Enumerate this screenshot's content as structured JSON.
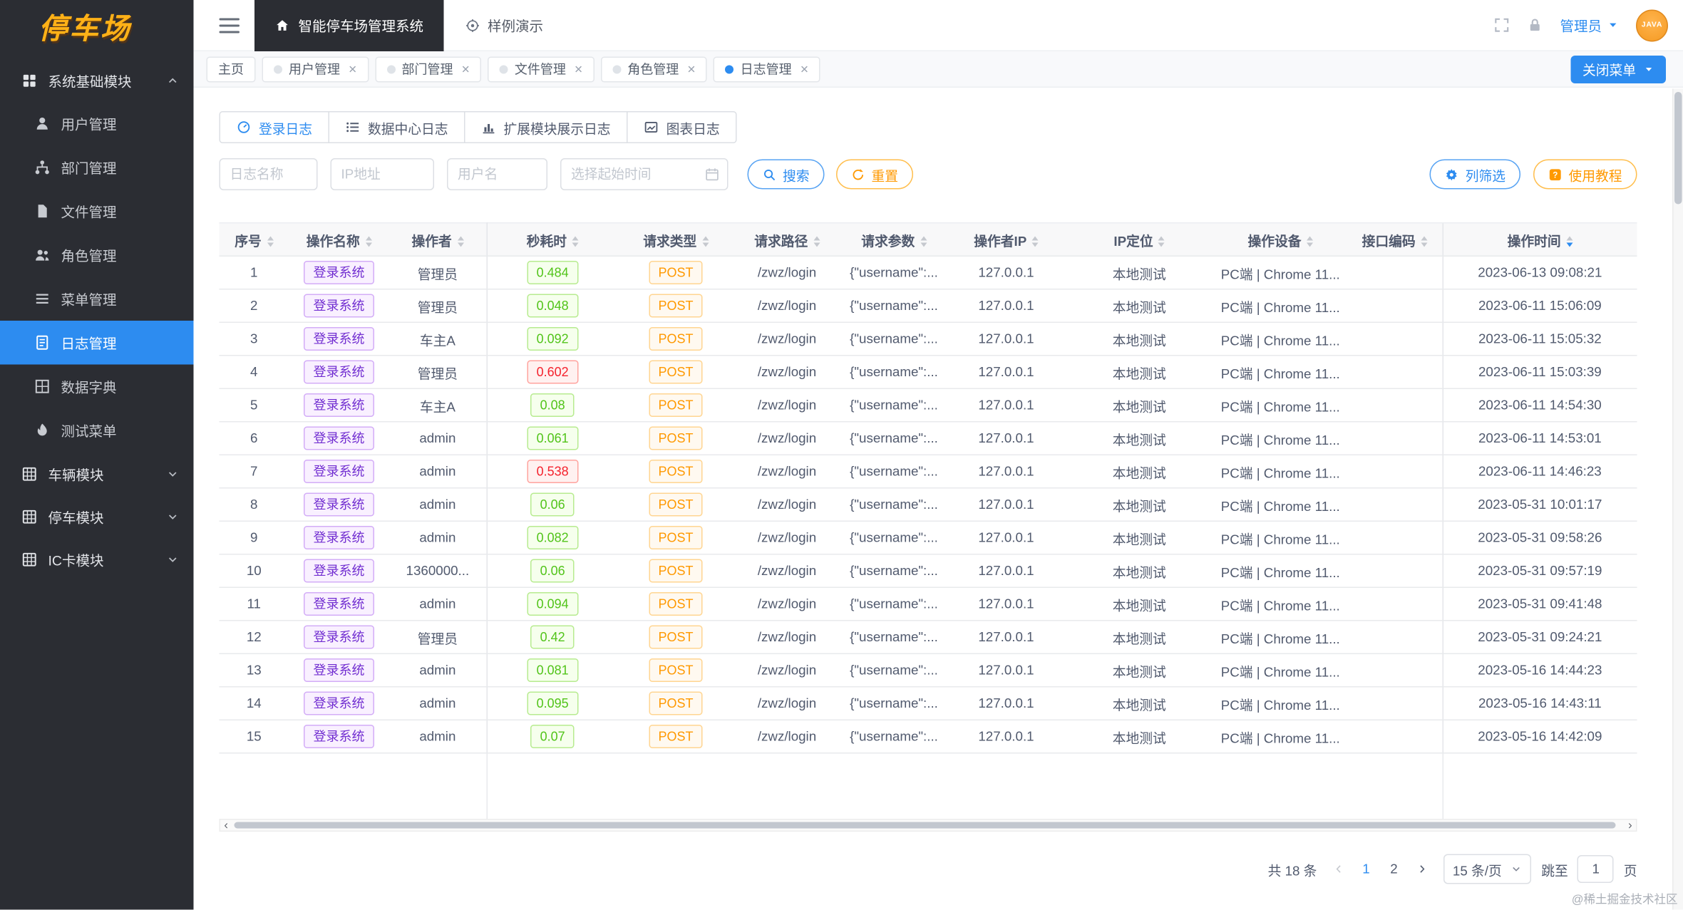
{
  "colors": {
    "primary": "#2d8cf0",
    "warning": "#ff9900",
    "sidebar_bg": "#2b2d33"
  },
  "logo": {
    "text": "停车场"
  },
  "topbar": {
    "system_title": "智能停车场管理系统",
    "demo_label": "样例演示",
    "user_label": "管理员",
    "avatar_text": "JAVA"
  },
  "tag_nav": {
    "close_menu_label": "关闭菜单",
    "tabs": [
      {
        "label": "主页",
        "dot": false,
        "closable": false,
        "active": false
      },
      {
        "label": "用户管理",
        "dot": true,
        "closable": true,
        "active": false
      },
      {
        "label": "部门管理",
        "dot": true,
        "closable": true,
        "active": false
      },
      {
        "label": "文件管理",
        "dot": true,
        "closable": true,
        "active": false
      },
      {
        "label": "角色管理",
        "dot": true,
        "closable": true,
        "active": false
      },
      {
        "label": "日志管理",
        "dot": true,
        "closable": true,
        "active": true
      }
    ]
  },
  "sidebar": {
    "items": [
      {
        "label": "系统基础模块",
        "icon": "modules-icon",
        "type": "section",
        "expanded": true,
        "active": false
      },
      {
        "label": "用户管理",
        "icon": "user-icon",
        "type": "item",
        "active": false
      },
      {
        "label": "部门管理",
        "icon": "department-icon",
        "type": "item",
        "active": false
      },
      {
        "label": "文件管理",
        "icon": "file-icon",
        "type": "item",
        "active": false
      },
      {
        "label": "角色管理",
        "icon": "role-icon",
        "type": "item",
        "active": false
      },
      {
        "label": "菜单管理",
        "icon": "menu-icon",
        "type": "item",
        "active": false
      },
      {
        "label": "日志管理",
        "icon": "log-icon",
        "type": "item",
        "active": true
      },
      {
        "label": "数据字典",
        "icon": "dict-icon",
        "type": "item",
        "active": false
      },
      {
        "label": "测试菜单",
        "icon": "test-icon",
        "type": "item",
        "active": false
      },
      {
        "label": "车辆模块",
        "icon": "vehicle-module-icon",
        "type": "section",
        "expanded": false,
        "active": false
      },
      {
        "label": "停车模块",
        "icon": "parking-module-icon",
        "type": "section",
        "expanded": false,
        "active": false
      },
      {
        "label": "IC卡模块",
        "icon": "ic-card-module-icon",
        "type": "section",
        "expanded": false,
        "active": false
      }
    ]
  },
  "log_tabs": [
    {
      "label": "登录日志",
      "icon": "login-log-icon",
      "active": true
    },
    {
      "label": "数据中心日志",
      "icon": "data-center-log-icon",
      "active": false
    },
    {
      "label": "扩展模块展示日志",
      "icon": "extension-log-icon",
      "active": false
    },
    {
      "label": "图表日志",
      "icon": "chart-log-icon",
      "active": false
    }
  ],
  "filters": {
    "log_name_placeholder": "日志名称",
    "ip_placeholder": "IP地址",
    "username_placeholder": "用户名",
    "time_placeholder": "选择起始时间",
    "search_label": "搜索",
    "reset_label": "重置",
    "column_filter_label": "列筛选",
    "tutorial_label": "使用教程"
  },
  "table": {
    "columns": [
      "序号",
      "操作名称",
      "操作者",
      "秒耗时",
      "请求类型",
      "请求路径",
      "请求参数",
      "操作者IP",
      "IP定位",
      "操作设备",
      "接口编码",
      "操作时间"
    ],
    "sorted_column": "操作时间",
    "rows": [
      {
        "index": 1,
        "name": "登录系统",
        "operator": "管理员",
        "cost": "0.484",
        "cost_status": "fast",
        "method": "POST",
        "path": "/zwz/login",
        "params": "{\"username\":...",
        "ip": "127.0.0.1",
        "location": "本地测试",
        "device": "PC端 | Chrome 11...",
        "api_code": "",
        "time": "2023-06-13 09:08:21"
      },
      {
        "index": 2,
        "name": "登录系统",
        "operator": "管理员",
        "cost": "0.048",
        "cost_status": "fast",
        "method": "POST",
        "path": "/zwz/login",
        "params": "{\"username\":...",
        "ip": "127.0.0.1",
        "location": "本地测试",
        "device": "PC端 | Chrome 11...",
        "api_code": "",
        "time": "2023-06-11 15:06:09"
      },
      {
        "index": 3,
        "name": "登录系统",
        "operator": "车主A",
        "cost": "0.092",
        "cost_status": "fast",
        "method": "POST",
        "path": "/zwz/login",
        "params": "{\"username\":...",
        "ip": "127.0.0.1",
        "location": "本地测试",
        "device": "PC端 | Chrome 11...",
        "api_code": "",
        "time": "2023-06-11 15:05:32"
      },
      {
        "index": 4,
        "name": "登录系统",
        "operator": "管理员",
        "cost": "0.602",
        "cost_status": "slow",
        "method": "POST",
        "path": "/zwz/login",
        "params": "{\"username\":...",
        "ip": "127.0.0.1",
        "location": "本地测试",
        "device": "PC端 | Chrome 11...",
        "api_code": "",
        "time": "2023-06-11 15:03:39"
      },
      {
        "index": 5,
        "name": "登录系统",
        "operator": "车主A",
        "cost": "0.08",
        "cost_status": "fast",
        "method": "POST",
        "path": "/zwz/login",
        "params": "{\"username\":...",
        "ip": "127.0.0.1",
        "location": "本地测试",
        "device": "PC端 | Chrome 11...",
        "api_code": "",
        "time": "2023-06-11 14:54:30"
      },
      {
        "index": 6,
        "name": "登录系统",
        "operator": "admin",
        "cost": "0.061",
        "cost_status": "fast",
        "method": "POST",
        "path": "/zwz/login",
        "params": "{\"username\":...",
        "ip": "127.0.0.1",
        "location": "本地测试",
        "device": "PC端 | Chrome 11...",
        "api_code": "",
        "time": "2023-06-11 14:53:01"
      },
      {
        "index": 7,
        "name": "登录系统",
        "operator": "admin",
        "cost": "0.538",
        "cost_status": "slow",
        "method": "POST",
        "path": "/zwz/login",
        "params": "{\"username\":...",
        "ip": "127.0.0.1",
        "location": "本地测试",
        "device": "PC端 | Chrome 11...",
        "api_code": "",
        "time": "2023-06-11 14:46:23"
      },
      {
        "index": 8,
        "name": "登录系统",
        "operator": "admin",
        "cost": "0.06",
        "cost_status": "fast",
        "method": "POST",
        "path": "/zwz/login",
        "params": "{\"username\":...",
        "ip": "127.0.0.1",
        "location": "本地测试",
        "device": "PC端 | Chrome 11...",
        "api_code": "",
        "time": "2023-05-31 10:01:17"
      },
      {
        "index": 9,
        "name": "登录系统",
        "operator": "admin",
        "cost": "0.082",
        "cost_status": "fast",
        "method": "POST",
        "path": "/zwz/login",
        "params": "{\"username\":...",
        "ip": "127.0.0.1",
        "location": "本地测试",
        "device": "PC端 | Chrome 11...",
        "api_code": "",
        "time": "2023-05-31 09:58:26"
      },
      {
        "index": 10,
        "name": "登录系统",
        "operator": "1360000...",
        "cost": "0.06",
        "cost_status": "fast",
        "method": "POST",
        "path": "/zwz/login",
        "params": "{\"username\":...",
        "ip": "127.0.0.1",
        "location": "本地测试",
        "device": "PC端 | Chrome 11...",
        "api_code": "",
        "time": "2023-05-31 09:57:19"
      },
      {
        "index": 11,
        "name": "登录系统",
        "operator": "admin",
        "cost": "0.094",
        "cost_status": "fast",
        "method": "POST",
        "path": "/zwz/login",
        "params": "{\"username\":...",
        "ip": "127.0.0.1",
        "location": "本地测试",
        "device": "PC端 | Chrome 11...",
        "api_code": "",
        "time": "2023-05-31 09:41:48"
      },
      {
        "index": 12,
        "name": "登录系统",
        "operator": "管理员",
        "cost": "0.42",
        "cost_status": "fast",
        "method": "POST",
        "path": "/zwz/login",
        "params": "{\"username\":...",
        "ip": "127.0.0.1",
        "location": "本地测试",
        "device": "PC端 | Chrome 11...",
        "api_code": "",
        "time": "2023-05-31 09:24:21"
      },
      {
        "index": 13,
        "name": "登录系统",
        "operator": "admin",
        "cost": "0.081",
        "cost_status": "fast",
        "method": "POST",
        "path": "/zwz/login",
        "params": "{\"username\":...",
        "ip": "127.0.0.1",
        "location": "本地测试",
        "device": "PC端 | Chrome 11...",
        "api_code": "",
        "time": "2023-05-16 14:44:23"
      },
      {
        "index": 14,
        "name": "登录系统",
        "operator": "admin",
        "cost": "0.095",
        "cost_status": "fast",
        "method": "POST",
        "path": "/zwz/login",
        "params": "{\"username\":...",
        "ip": "127.0.0.1",
        "location": "本地测试",
        "device": "PC端 | Chrome 11...",
        "api_code": "",
        "time": "2023-05-16 14:43:11"
      },
      {
        "index": 15,
        "name": "登录系统",
        "operator": "admin",
        "cost": "0.07",
        "cost_status": "fast",
        "method": "POST",
        "path": "/zwz/login",
        "params": "{\"username\":...",
        "ip": "127.0.0.1",
        "location": "本地测试",
        "device": "PC端 | Chrome 11...",
        "api_code": "",
        "time": "2023-05-16 14:42:09"
      }
    ]
  },
  "pagination": {
    "total_label": "共 18 条",
    "pages": [
      "1",
      "2"
    ],
    "current_page": "1",
    "page_size_label": "15 条/页",
    "jump_label": "跳至",
    "jump_value": "1",
    "page_unit": "页"
  },
  "watermark": "@稀土掘金技术社区"
}
